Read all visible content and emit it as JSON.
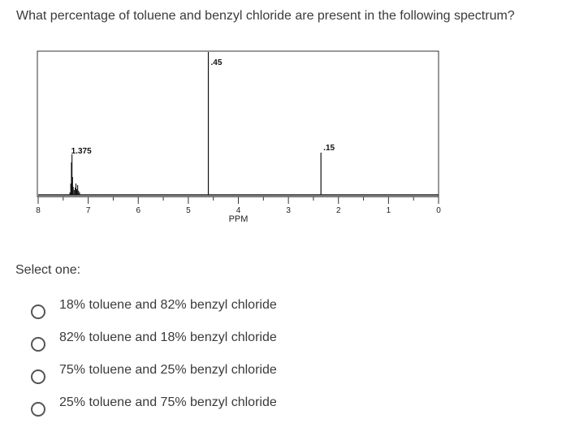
{
  "question": {
    "text": "What percentage of toluene and benzyl chloride are present in the following spectrum?"
  },
  "chart_data": {
    "type": "line",
    "title": "",
    "xlabel": "PPM",
    "ylabel": "",
    "xlim": [
      8,
      0
    ],
    "x_ticks": [
      "8",
      "7",
      "6",
      "5",
      "4",
      "3",
      "2",
      "1",
      "0"
    ],
    "grid": false,
    "peaks": [
      {
        "ppm": 7.3,
        "label": "1.375"
      },
      {
        "ppm": 4.6,
        "label": ".45"
      },
      {
        "ppm": 2.35,
        "label": ".15"
      }
    ]
  },
  "select": {
    "label": "Select one:",
    "options": [
      "18% toluene and 82% benzyl chloride",
      "82% toluene and 18% benzyl chloride",
      "75% toluene and 25% benzyl chloride",
      "25% toluene and 75% benzyl chloride"
    ]
  }
}
